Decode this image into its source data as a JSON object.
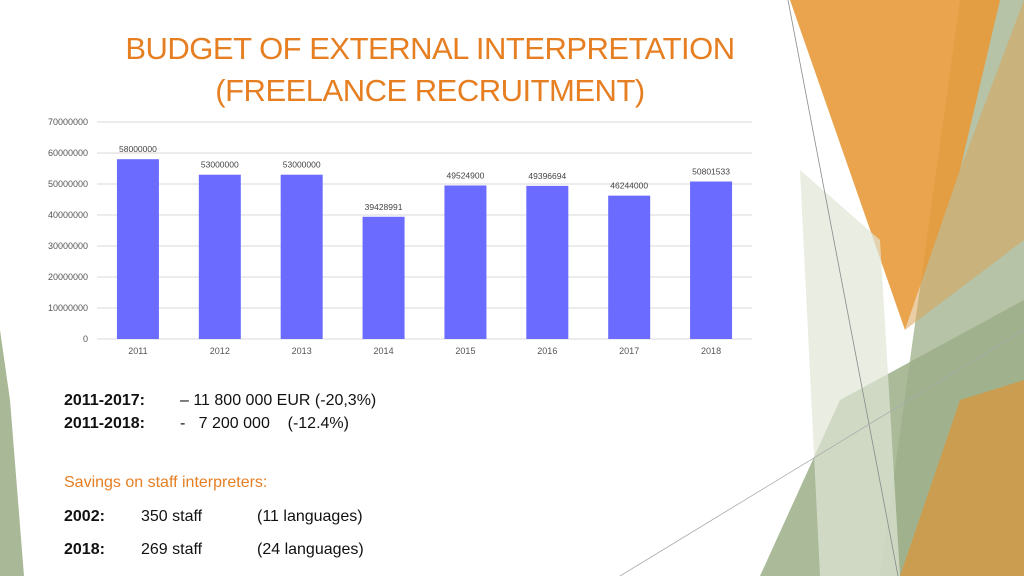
{
  "title_line1": "BUDGET OF EXTERNAL INTERPRETATION",
  "title_line2": "(FREELANCE RECRUITMENT)",
  "chart_data": {
    "type": "bar",
    "categories": [
      "2011",
      "2012",
      "2013",
      "2014",
      "2015",
      "2016",
      "2017",
      "2018"
    ],
    "values": [
      58000000,
      53000000,
      53000000,
      39428991,
      49524900,
      49396694,
      46244000,
      50801533
    ],
    "data_labels": [
      "58000000",
      "53000000",
      "53000000",
      "39428991",
      "49524900",
      "49396694",
      "46244000",
      "50801533"
    ],
    "yticks": [
      "0",
      "10000000",
      "20000000",
      "30000000",
      "40000000",
      "50000000",
      "60000000",
      "70000000"
    ],
    "ylim": [
      0,
      70000000
    ],
    "bar_color": "#6b6bff",
    "grid": true
  },
  "summary": [
    {
      "period": "2011-2017:",
      "value": "– 11 800 000 EUR (-20,3%)"
    },
    {
      "period": "2011-2018:",
      "value": "-   7 200 000    (-12.4%)"
    }
  ],
  "savings_title": "Savings on staff interpreters:",
  "staff": [
    {
      "year": "2002:",
      "count": "350 staff",
      "languages": "(11 languages)"
    },
    {
      "year": "2018:",
      "count": "269 staff",
      "languages": "(24 languages)"
    }
  ],
  "colors": {
    "accent": "#e67e22",
    "bar": "#6b6bff",
    "deco_green": "#9caf88",
    "deco_orange": "#e8902a"
  }
}
